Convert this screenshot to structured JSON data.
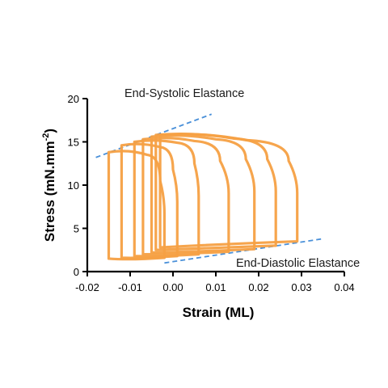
{
  "chart_data": {
    "type": "line",
    "xlabel": "Strain (ML)",
    "ylabel_main": "Stress (mN.mm",
    "ylabel_sup": "-2",
    "ylabel_end": ")",
    "xlim": [
      -0.02,
      0.04
    ],
    "ylim": [
      0,
      20
    ],
    "x_ticks": [
      -0.02,
      -0.01,
      0.0,
      0.01,
      0.02,
      0.03,
      0.04
    ],
    "x_tick_labels": [
      "-0.02",
      "-0.01",
      "0.00",
      "0.01",
      "0.02",
      "0.03",
      "0.04"
    ],
    "y_ticks": [
      0,
      5,
      10,
      15,
      20
    ],
    "y_tick_labels": [
      "0",
      "5",
      "10",
      "15",
      "20"
    ],
    "colors": {
      "loops": "#f5a043",
      "elastance": "#4a90d9"
    },
    "annotations": {
      "end_systolic": "End-Systolic Elastance",
      "end_diastolic": "End-Diastolic Elastance"
    },
    "elastance_lines": [
      {
        "name": "End-Systolic Elastance",
        "points": [
          [
            -0.018,
            13.2
          ],
          [
            0.009,
            18.2
          ]
        ]
      },
      {
        "name": "End-Diastolic Elastance",
        "points": [
          [
            -0.002,
            1.0
          ],
          [
            0.035,
            3.8
          ]
        ]
      }
    ],
    "loops": [
      {
        "points": [
          [
            -0.015,
            1.5
          ],
          [
            -0.015,
            13.8
          ],
          [
            -0.006,
            13.5
          ],
          [
            -0.003,
            10.5
          ],
          [
            -0.002,
            1.6
          ],
          [
            -0.01,
            1.4
          ]
        ]
      },
      {
        "points": [
          [
            -0.012,
            1.6
          ],
          [
            -0.012,
            14.6
          ],
          [
            -0.003,
            14.4
          ],
          [
            0.0,
            11.8
          ],
          [
            0.001,
            1.8
          ],
          [
            -0.008,
            1.5
          ]
        ]
      },
      {
        "points": [
          [
            -0.009,
            1.8
          ],
          [
            -0.009,
            15.0
          ],
          [
            0.001,
            14.9
          ],
          [
            0.005,
            12.5
          ],
          [
            0.006,
            2.0
          ],
          [
            -0.004,
            1.7
          ]
        ]
      },
      {
        "points": [
          [
            -0.007,
            2.0
          ],
          [
            -0.007,
            15.3
          ],
          [
            0.005,
            15.1
          ],
          [
            0.011,
            12.8
          ],
          [
            0.013,
            2.3
          ],
          [
            0.002,
            1.9
          ]
        ]
      },
      {
        "points": [
          [
            -0.005,
            2.2
          ],
          [
            -0.005,
            15.6
          ],
          [
            0.01,
            15.3
          ],
          [
            0.017,
            13.0
          ],
          [
            0.019,
            2.6
          ],
          [
            0.007,
            2.1
          ]
        ]
      },
      {
        "points": [
          [
            -0.004,
            2.5
          ],
          [
            -0.004,
            15.8
          ],
          [
            0.014,
            15.4
          ],
          [
            0.022,
            13.0
          ],
          [
            0.024,
            3.0
          ],
          [
            0.01,
            2.4
          ]
        ]
      },
      {
        "points": [
          [
            -0.003,
            2.8
          ],
          [
            -0.003,
            15.8
          ],
          [
            0.017,
            15.2
          ],
          [
            0.027,
            12.8
          ],
          [
            0.029,
            3.5
          ],
          [
            0.013,
            2.7
          ]
        ]
      }
    ]
  }
}
